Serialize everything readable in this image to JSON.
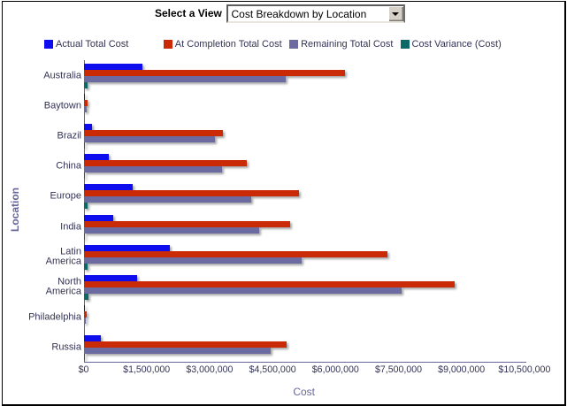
{
  "window": {
    "background": "#ffffff",
    "border_color": "#000000"
  },
  "toolbar": {
    "label": "Select a View",
    "select_value": "Cost Breakdown by Location",
    "select_options": [
      "Cost Breakdown by Location"
    ],
    "dropdown_arrow_icon": "down-triangle"
  },
  "chart_data": {
    "type": "bar",
    "orientation": "horizontal",
    "xlabel": "Cost",
    "ylabel": "Location",
    "grid": false,
    "legend_position": "top",
    "xlim": [
      0,
      10500000
    ],
    "xtick_step": 1500000,
    "xtick_labels": [
      "$0",
      "$1,500,000",
      "$3,000,000",
      "$4,500,000",
      "$6,000,000",
      "$7,500,000",
      "$9,000,000",
      "$10,500,000"
    ],
    "categories": [
      "Australia",
      "Baytown",
      "Brazil",
      "China",
      "Europe",
      "India",
      "Latin America",
      "North America",
      "Philadelphia",
      "Russia"
    ],
    "series": [
      {
        "name": "Actual Total Cost",
        "color": "#0d0dee",
        "values": [
          1400000,
          30000,
          190000,
          610000,
          1170000,
          710000,
          2060000,
          1270000,
          30000,
          420000
        ]
      },
      {
        "name": "At Completion Total Cost",
        "color": "#cb2a07",
        "values": [
          6220000,
          90000,
          3310000,
          3890000,
          5120000,
          4910000,
          7240000,
          8840000,
          70000,
          4840000
        ]
      },
      {
        "name": "Remaining Total Cost",
        "color": "#6b6ba1",
        "values": [
          4810000,
          65000,
          3120000,
          3290000,
          3990000,
          4180000,
          5200000,
          7570000,
          50000,
          4450000
        ]
      },
      {
        "name": "Cost Variance (Cost)",
        "color": "#0d6968",
        "values": [
          100000,
          0,
          20000,
          20000,
          95000,
          10000,
          90000,
          115000,
          0,
          30000
        ]
      }
    ],
    "axis_color": "#666699",
    "text_color": "#333355"
  }
}
